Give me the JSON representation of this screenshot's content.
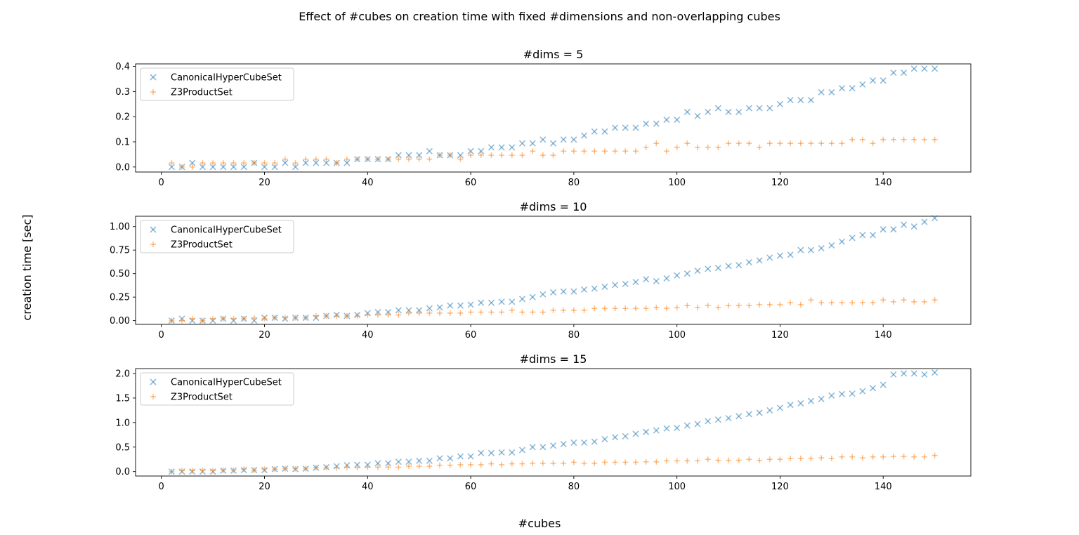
{
  "figure": {
    "suptitle": "Effect of #cubes on creation time with fixed #dimensions and non-overlapping cubes",
    "xlabel": "#cubes",
    "ylabel": "creation time [sec]"
  },
  "colors": {
    "canonical": "#1f77b4",
    "z3": "#ff7f0e"
  },
  "chart_data": [
    {
      "type": "scatter",
      "title": "#dims = 5",
      "xlim": [
        -5,
        157
      ],
      "ylim": [
        -0.02,
        0.41
      ],
      "xticks": [
        0,
        20,
        40,
        60,
        80,
        100,
        120,
        140
      ],
      "yticks": [
        0.0,
        0.1,
        0.2,
        0.3,
        0.4
      ],
      "ytick_labels": [
        "0.0",
        "0.1",
        "0.2",
        "0.3",
        "0.4"
      ],
      "legend": "top-left",
      "x": [
        2,
        4,
        6,
        8,
        10,
        12,
        14,
        16,
        18,
        20,
        22,
        24,
        26,
        28,
        30,
        32,
        34,
        36,
        38,
        40,
        42,
        44,
        46,
        48,
        50,
        52,
        54,
        56,
        58,
        60,
        62,
        64,
        66,
        68,
        70,
        72,
        74,
        76,
        78,
        80,
        82,
        84,
        86,
        88,
        90,
        92,
        94,
        96,
        98,
        100,
        102,
        104,
        106,
        108,
        110,
        112,
        114,
        116,
        118,
        120,
        122,
        124,
        126,
        128,
        130,
        132,
        134,
        136,
        138,
        140,
        142,
        144,
        146,
        148,
        150
      ],
      "series": [
        {
          "name": "CanonicalHyperCubeSet",
          "marker": "x",
          "values": [
            0.0,
            0.0,
            0.016,
            0.0,
            0.0,
            0.0,
            0.0,
            0.0,
            0.016,
            0.0,
            0.0,
            0.016,
            0.0,
            0.016,
            0.016,
            0.016,
            0.016,
            0.016,
            0.031,
            0.031,
            0.031,
            0.031,
            0.047,
            0.047,
            0.047,
            0.063,
            0.047,
            0.047,
            0.047,
            0.063,
            0.063,
            0.078,
            0.078,
            0.078,
            0.094,
            0.094,
            0.109,
            0.094,
            0.109,
            0.109,
            0.125,
            0.141,
            0.141,
            0.156,
            0.156,
            0.156,
            0.172,
            0.172,
            0.188,
            0.188,
            0.219,
            0.203,
            0.219,
            0.234,
            0.219,
            0.219,
            0.234,
            0.234,
            0.234,
            0.25,
            0.266,
            0.266,
            0.266,
            0.297,
            0.297,
            0.313,
            0.313,
            0.328,
            0.344,
            0.344,
            0.375,
            0.375,
            0.391,
            0.391,
            0.391
          ]
        },
        {
          "name": "Z3ProductSet",
          "marker": "+",
          "values": [
            0.016,
            0.0,
            0.0,
            0.016,
            0.016,
            0.016,
            0.016,
            0.016,
            0.016,
            0.016,
            0.016,
            0.031,
            0.016,
            0.031,
            0.031,
            0.031,
            0.016,
            0.031,
            0.031,
            0.031,
            0.031,
            0.031,
            0.031,
            0.031,
            0.031,
            0.031,
            0.047,
            0.047,
            0.031,
            0.047,
            0.047,
            0.047,
            0.047,
            0.047,
            0.047,
            0.063,
            0.047,
            0.047,
            0.063,
            0.063,
            0.063,
            0.063,
            0.063,
            0.063,
            0.063,
            0.063,
            0.078,
            0.094,
            0.063,
            0.078,
            0.094,
            0.078,
            0.078,
            0.078,
            0.094,
            0.094,
            0.094,
            0.078,
            0.094,
            0.094,
            0.094,
            0.094,
            0.094,
            0.094,
            0.094,
            0.094,
            0.109,
            0.109,
            0.094,
            0.109,
            0.109,
            0.109,
            0.109,
            0.109,
            0.109
          ]
        }
      ]
    },
    {
      "type": "scatter",
      "title": "#dims = 10",
      "xlim": [
        -5,
        157
      ],
      "ylim": [
        -0.04,
        1.11
      ],
      "xticks": [
        0,
        20,
        40,
        60,
        80,
        100,
        120,
        140
      ],
      "yticks": [
        0.0,
        0.25,
        0.5,
        0.75,
        1.0
      ],
      "ytick_labels": [
        "0.00",
        "0.25",
        "0.50",
        "0.75",
        "1.00"
      ],
      "legend": "top-left",
      "x": [
        2,
        4,
        6,
        8,
        10,
        12,
        14,
        16,
        18,
        20,
        22,
        24,
        26,
        28,
        30,
        32,
        34,
        36,
        38,
        40,
        42,
        44,
        46,
        48,
        50,
        52,
        54,
        56,
        58,
        60,
        62,
        64,
        66,
        68,
        70,
        72,
        74,
        76,
        78,
        80,
        82,
        84,
        86,
        88,
        90,
        92,
        94,
        96,
        98,
        100,
        102,
        104,
        106,
        108,
        110,
        112,
        114,
        116,
        118,
        120,
        122,
        124,
        126,
        128,
        130,
        132,
        134,
        136,
        138,
        140,
        142,
        144,
        146,
        148,
        150
      ],
      "series": [
        {
          "name": "CanonicalHyperCubeSet",
          "marker": "x",
          "values": [
            0.0,
            0.02,
            0.0,
            0.0,
            0.0,
            0.02,
            0.0,
            0.02,
            0.0,
            0.03,
            0.03,
            0.02,
            0.03,
            0.03,
            0.03,
            0.05,
            0.06,
            0.05,
            0.06,
            0.08,
            0.09,
            0.09,
            0.11,
            0.11,
            0.11,
            0.13,
            0.14,
            0.16,
            0.16,
            0.17,
            0.19,
            0.19,
            0.2,
            0.2,
            0.23,
            0.25,
            0.28,
            0.3,
            0.31,
            0.31,
            0.33,
            0.34,
            0.36,
            0.38,
            0.39,
            0.41,
            0.44,
            0.42,
            0.45,
            0.48,
            0.5,
            0.53,
            0.55,
            0.56,
            0.58,
            0.59,
            0.62,
            0.64,
            0.67,
            0.69,
            0.7,
            0.75,
            0.75,
            0.77,
            0.8,
            0.84,
            0.88,
            0.91,
            0.91,
            0.97,
            0.97,
            1.02,
            1.0,
            1.05,
            1.09
          ]
        },
        {
          "name": "Z3ProductSet",
          "marker": "+",
          "values": [
            0.0,
            0.0,
            0.02,
            0.0,
            0.02,
            0.02,
            0.02,
            0.02,
            0.03,
            0.02,
            0.03,
            0.03,
            0.03,
            0.03,
            0.05,
            0.05,
            0.05,
            0.05,
            0.05,
            0.06,
            0.06,
            0.06,
            0.06,
            0.08,
            0.08,
            0.08,
            0.08,
            0.08,
            0.08,
            0.09,
            0.09,
            0.09,
            0.09,
            0.11,
            0.09,
            0.09,
            0.09,
            0.11,
            0.11,
            0.11,
            0.11,
            0.13,
            0.13,
            0.13,
            0.13,
            0.13,
            0.13,
            0.14,
            0.13,
            0.14,
            0.16,
            0.14,
            0.16,
            0.14,
            0.16,
            0.16,
            0.16,
            0.17,
            0.17,
            0.17,
            0.19,
            0.17,
            0.22,
            0.19,
            0.19,
            0.19,
            0.19,
            0.19,
            0.19,
            0.22,
            0.2,
            0.22,
            0.2,
            0.2,
            0.22
          ]
        }
      ]
    },
    {
      "type": "scatter",
      "title": "#dims = 15",
      "xlim": [
        -5,
        157
      ],
      "ylim": [
        -0.09,
        2.1
      ],
      "xticks": [
        0,
        20,
        40,
        60,
        80,
        100,
        120,
        140
      ],
      "yticks": [
        0.0,
        0.5,
        1.0,
        1.5,
        2.0
      ],
      "ytick_labels": [
        "0.0",
        "0.5",
        "1.0",
        "1.5",
        "2.0"
      ],
      "legend": "top-left",
      "x": [
        2,
        4,
        6,
        8,
        10,
        12,
        14,
        16,
        18,
        20,
        22,
        24,
        26,
        28,
        30,
        32,
        34,
        36,
        38,
        40,
        42,
        44,
        46,
        48,
        50,
        52,
        54,
        56,
        58,
        60,
        62,
        64,
        66,
        68,
        70,
        72,
        74,
        76,
        78,
        80,
        82,
        84,
        86,
        88,
        90,
        92,
        94,
        96,
        98,
        100,
        102,
        104,
        106,
        108,
        110,
        112,
        114,
        116,
        118,
        120,
        122,
        124,
        126,
        128,
        130,
        132,
        134,
        136,
        138,
        140,
        142,
        144,
        146,
        148,
        150
      ],
      "series": [
        {
          "name": "CanonicalHyperCubeSet",
          "marker": "x",
          "values": [
            0.0,
            0.0,
            0.0,
            0.0,
            0.0,
            0.02,
            0.02,
            0.03,
            0.03,
            0.03,
            0.05,
            0.06,
            0.05,
            0.06,
            0.08,
            0.09,
            0.11,
            0.13,
            0.14,
            0.14,
            0.17,
            0.17,
            0.2,
            0.2,
            0.22,
            0.22,
            0.27,
            0.27,
            0.31,
            0.31,
            0.38,
            0.38,
            0.39,
            0.39,
            0.44,
            0.5,
            0.5,
            0.53,
            0.56,
            0.59,
            0.59,
            0.61,
            0.66,
            0.7,
            0.72,
            0.77,
            0.81,
            0.84,
            0.88,
            0.89,
            0.94,
            0.97,
            1.03,
            1.06,
            1.09,
            1.13,
            1.17,
            1.2,
            1.25,
            1.3,
            1.36,
            1.39,
            1.44,
            1.48,
            1.55,
            1.58,
            1.59,
            1.64,
            1.7,
            1.77,
            1.98,
            2.0,
            2.0,
            1.98,
            2.02
          ]
        },
        {
          "name": "Z3ProductSet",
          "marker": "+",
          "values": [
            0.0,
            0.02,
            0.02,
            0.03,
            0.02,
            0.03,
            0.03,
            0.05,
            0.03,
            0.05,
            0.05,
            0.06,
            0.06,
            0.06,
            0.08,
            0.08,
            0.08,
            0.09,
            0.08,
            0.09,
            0.09,
            0.09,
            0.09,
            0.11,
            0.11,
            0.11,
            0.13,
            0.13,
            0.14,
            0.14,
            0.14,
            0.16,
            0.14,
            0.16,
            0.16,
            0.17,
            0.17,
            0.17,
            0.17,
            0.19,
            0.17,
            0.17,
            0.19,
            0.19,
            0.19,
            0.19,
            0.2,
            0.2,
            0.22,
            0.22,
            0.22,
            0.22,
            0.25,
            0.23,
            0.23,
            0.23,
            0.25,
            0.23,
            0.25,
            0.25,
            0.27,
            0.27,
            0.27,
            0.28,
            0.27,
            0.3,
            0.3,
            0.28,
            0.3,
            0.3,
            0.31,
            0.31,
            0.3,
            0.3,
            0.33
          ]
        }
      ]
    }
  ]
}
